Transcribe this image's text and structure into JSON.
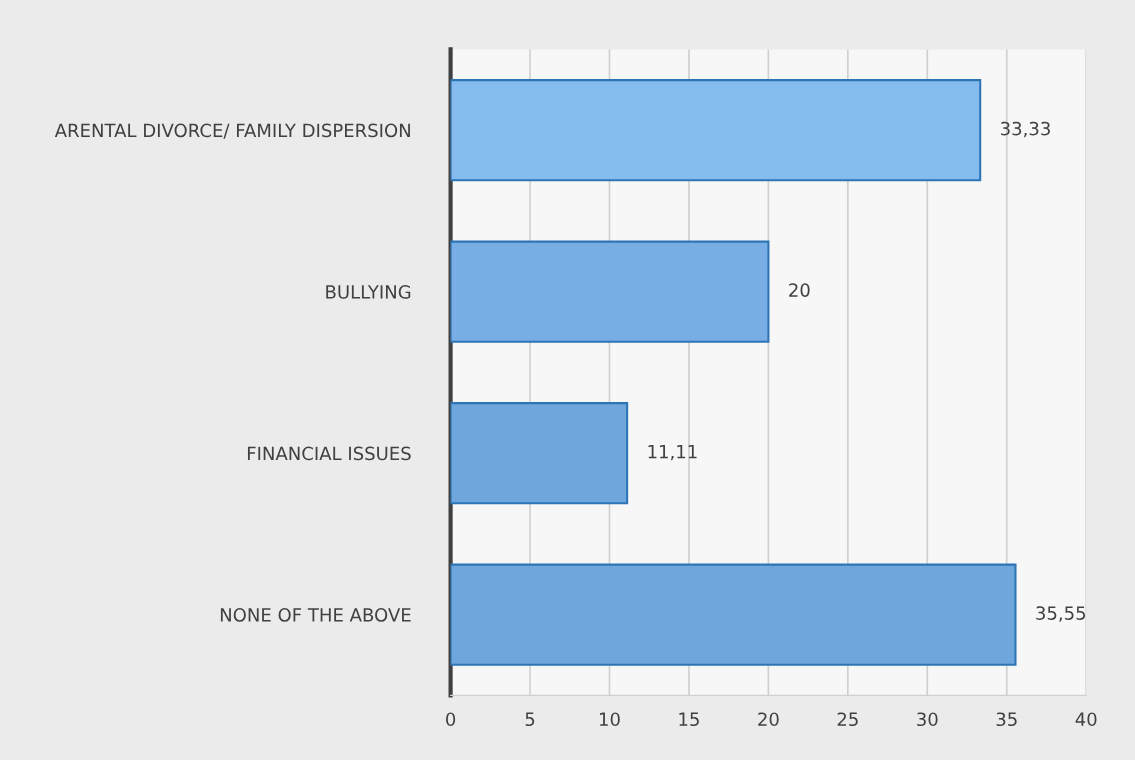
{
  "chart_data": {
    "type": "bar",
    "orientation": "horizontal",
    "categories": [
      "ARENTAL DIVORCE/ FAMILY DISPERSION",
      "BULLYING",
      "FINANCIAL ISSUES",
      "NONE OF THE ABOVE"
    ],
    "values": [
      33.33,
      20,
      11.11,
      35.55
    ],
    "value_labels": [
      "33,33",
      "20",
      "11,11",
      "35,55"
    ],
    "colors": [
      "#85bbee",
      "#78aee4",
      "#6fa6dc",
      "#6fa6dc"
    ],
    "xlim": [
      0,
      40
    ],
    "xticks": [
      0,
      5,
      10,
      15,
      20,
      25,
      30,
      35,
      40
    ],
    "grid": "x",
    "legend": false
  }
}
